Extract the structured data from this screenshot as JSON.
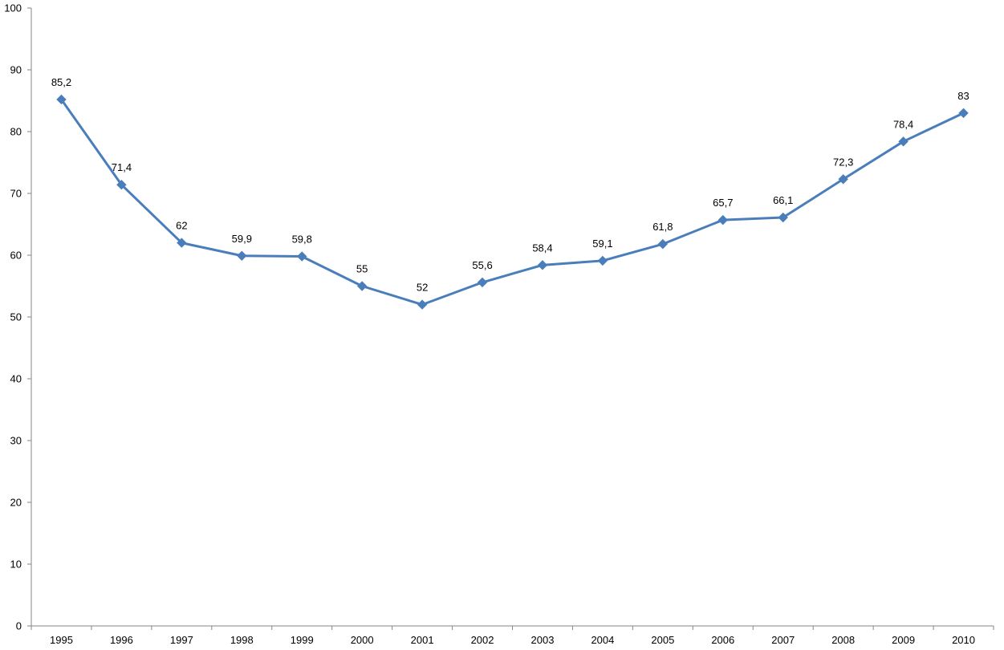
{
  "chart_data": {
    "type": "line",
    "title": "",
    "xlabel": "",
    "ylabel": "",
    "ylim": [
      0,
      100
    ],
    "yticks": [
      0,
      10,
      20,
      30,
      40,
      50,
      60,
      70,
      80,
      90,
      100
    ],
    "grid": false,
    "legend": "none",
    "marker": "diamond",
    "decimal_separator": ",",
    "categories": [
      "1995",
      "1996",
      "1997",
      "1998",
      "1999",
      "2000",
      "2001",
      "2002",
      "2003",
      "2004",
      "2005",
      "2006",
      "2007",
      "2008",
      "2009",
      "2010"
    ],
    "series": [
      {
        "color": "#4a7ebb",
        "values": [
          85.2,
          71.4,
          62,
          59.9,
          59.8,
          55,
          52,
          55.6,
          58.4,
          59.1,
          61.8,
          65.7,
          66.1,
          72.3,
          78.4,
          83
        ],
        "labels": [
          "85,2",
          "71,4",
          "62",
          "59,9",
          "59,8",
          "55",
          "52",
          "55,6",
          "58,4",
          "59,1",
          "61,8",
          "65,7",
          "66,1",
          "72,3",
          "78,4",
          "83"
        ]
      }
    ]
  }
}
